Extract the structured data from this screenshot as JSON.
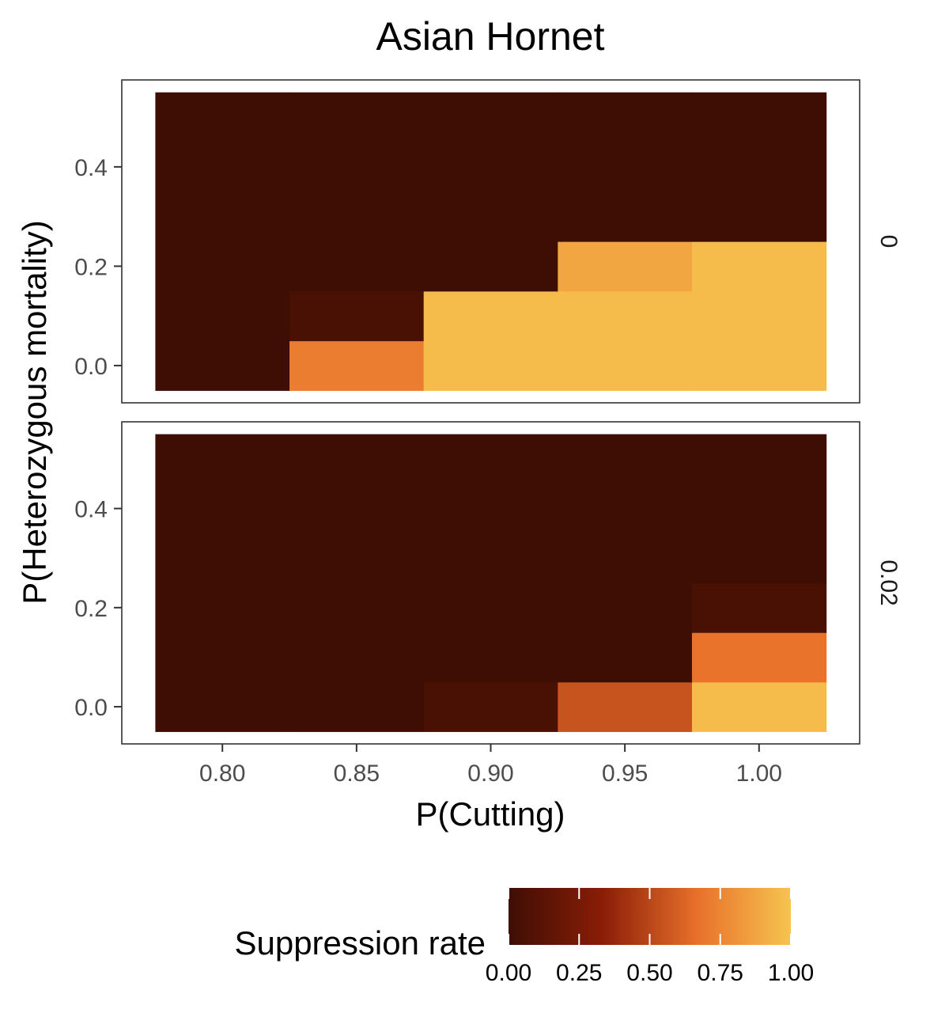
{
  "chart_data": {
    "type": "heatmap",
    "title": "Asian Hornet",
    "xlabel": "P(Cutting)",
    "ylabel": "P(Heterozygous mortality)",
    "x": [
      0.8,
      0.85,
      0.9,
      0.95,
      1.0
    ],
    "y": [
      0.0,
      0.1,
      0.2,
      0.3,
      0.4,
      0.5
    ],
    "xticks": [
      "0.80",
      "0.85",
      "0.90",
      "0.95",
      "1.00"
    ],
    "yticks": [
      "0.0",
      "0.2",
      "0.4"
    ],
    "xlim": [
      0.7625,
      1.0375
    ],
    "ylim": [
      -0.075,
      0.575
    ],
    "grid": false,
    "facets": [
      {
        "label": "0",
        "z": [
          [
            0.0,
            0.72,
            0.97,
            0.97,
            0.97
          ],
          [
            0.0,
            0.05,
            0.97,
            0.97,
            0.97
          ],
          [
            0.0,
            0.0,
            0.0,
            0.88,
            0.97
          ],
          [
            0.0,
            0.0,
            0.0,
            0.0,
            0.0
          ],
          [
            0.0,
            0.0,
            0.0,
            0.0,
            0.0
          ],
          [
            0.0,
            0.0,
            0.0,
            0.0,
            0.0
          ]
        ]
      },
      {
        "label": "0.02",
        "z": [
          [
            0.0,
            0.0,
            0.05,
            0.55,
            0.97
          ],
          [
            0.0,
            0.0,
            0.0,
            0.0,
            0.68
          ],
          [
            0.0,
            0.0,
            0.0,
            0.0,
            0.05
          ],
          [
            0.0,
            0.0,
            0.0,
            0.0,
            0.0
          ],
          [
            0.0,
            0.0,
            0.0,
            0.0,
            0.0
          ],
          [
            0.0,
            0.0,
            0.0,
            0.0,
            0.0
          ]
        ]
      }
    ],
    "legend": {
      "title": "Suppression rate",
      "position": "bottom",
      "range": [
        0,
        1
      ],
      "ticks": [
        "0.00",
        "0.25",
        "0.50",
        "0.75",
        "1.00"
      ],
      "colors": [
        "#3e0e04",
        "#8a1d07",
        "#e8702a",
        "#f6c44f"
      ]
    }
  }
}
